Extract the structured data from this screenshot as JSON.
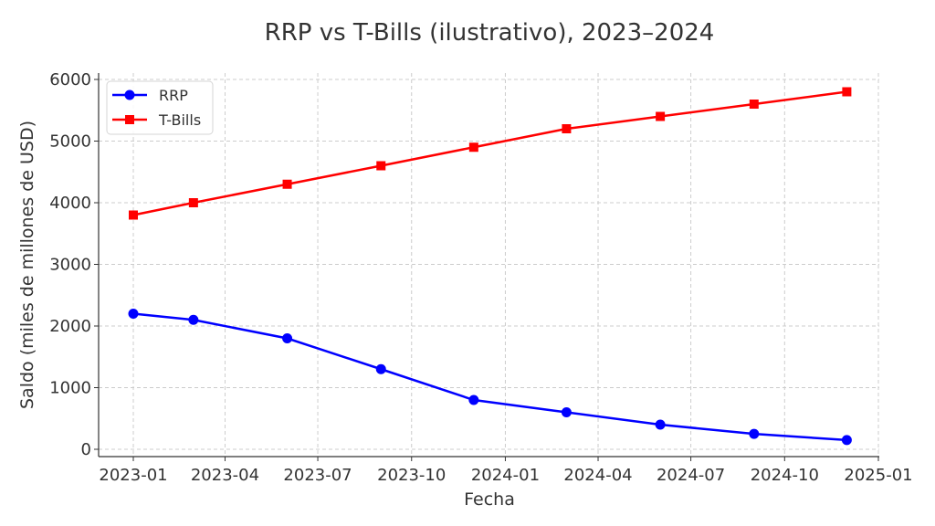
{
  "chart_data": {
    "type": "line",
    "title": "RRP vs T-Bills (ilustrativo), 2023–2024",
    "xlabel": "Fecha",
    "ylabel": "Saldo (miles de millones de USD)",
    "x": [
      "2023-01-01",
      "2023-03-01",
      "2023-06-01",
      "2023-09-01",
      "2023-12-01",
      "2024-03-01",
      "2024-06-01",
      "2024-09-01",
      "2024-12-01"
    ],
    "series": [
      {
        "name": "RRP",
        "color": "#0000ff",
        "marker": "circle",
        "values": [
          2200,
          2100,
          1800,
          1300,
          800,
          600,
          400,
          250,
          150
        ]
      },
      {
        "name": "T-Bills",
        "color": "#ff0000",
        "marker": "square",
        "values": [
          3800,
          4000,
          4300,
          4600,
          4900,
          5200,
          5400,
          5600,
          5800
        ]
      }
    ],
    "xticks": [
      "2023-01",
      "2023-04",
      "2023-07",
      "2023-10",
      "2024-01",
      "2024-04",
      "2024-07",
      "2024-10",
      "2025-01"
    ],
    "yticks": [
      0,
      1000,
      2000,
      3000,
      4000,
      5000,
      6000
    ],
    "ylim": [
      -130,
      6130
    ],
    "grid": true,
    "legend_position": "upper left"
  }
}
